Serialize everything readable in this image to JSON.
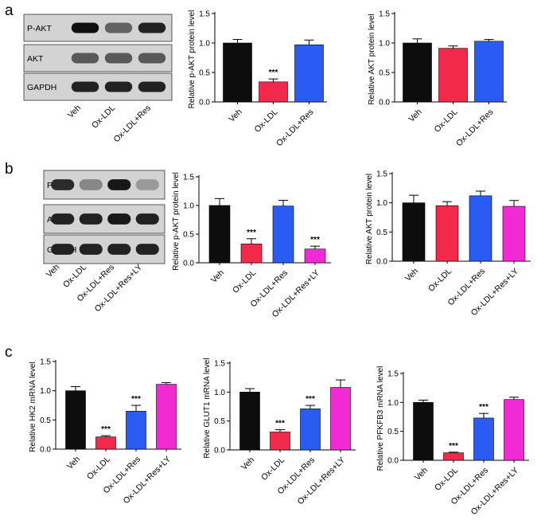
{
  "panels": {
    "a": "a",
    "b": "b",
    "c": "c"
  },
  "blots": {
    "a": {
      "rows": [
        "P-AKT",
        "AKT",
        "GAPDH"
      ],
      "lanes": [
        "Veh",
        "Ox-LDL",
        "Ox-LDL+Res"
      ],
      "band_intensity": [
        [
          1.0,
          0.55,
          0.9
        ],
        [
          0.6,
          0.6,
          0.6
        ],
        [
          0.9,
          0.9,
          0.9
        ]
      ]
    },
    "b": {
      "rows": [
        "P-AKT",
        "AKT",
        "GAPDH"
      ],
      "lanes": [
        "Veh",
        "Ox-LDL",
        "Ox-LDL+Res",
        "Ox-LDL+Res+LY"
      ],
      "band_intensity": [
        [
          0.85,
          0.35,
          0.95,
          0.25
        ],
        [
          0.9,
          0.9,
          0.95,
          0.9
        ],
        [
          0.9,
          0.9,
          0.9,
          0.9
        ]
      ]
    }
  },
  "colors": {
    "Veh": "#0d0d0d",
    "Ox-LDL": "#f2294a",
    "Ox-LDL+Res": "#2a5cf4",
    "Ox-LDL+Res+LY": "#f12ad3"
  },
  "chart_data": [
    {
      "type": "bar",
      "panel": "a",
      "title": "",
      "xlabel": "",
      "ylabel": "Relative p-AKT protein level",
      "ylim": [
        0,
        1.5
      ],
      "yticks": [
        "0.0",
        "0.5",
        "1.0",
        "1.5"
      ],
      "categories": [
        "Veh",
        "Ox-LDL",
        "Ox-LDL+Res"
      ],
      "values": [
        1.0,
        0.34,
        0.97
      ],
      "errors": [
        0.06,
        0.05,
        0.08
      ],
      "annotations": [
        "",
        "***",
        ""
      ]
    },
    {
      "type": "bar",
      "panel": "a",
      "title": "",
      "xlabel": "",
      "ylabel": "Relative AKT protein level",
      "ylim": [
        0,
        1.5
      ],
      "yticks": [
        "0.0",
        "0.5",
        "1.0",
        "1.5"
      ],
      "categories": [
        "Veh",
        "Ox-LDL",
        "Ox-LDL+Res"
      ],
      "values": [
        1.0,
        0.91,
        1.03
      ],
      "errors": [
        0.07,
        0.04,
        0.03
      ],
      "annotations": [
        "",
        "",
        ""
      ]
    },
    {
      "type": "bar",
      "panel": "b",
      "title": "",
      "xlabel": "",
      "ylabel": "Relative p-AKT protein level",
      "ylim": [
        0,
        1.5
      ],
      "yticks": [
        "0.0",
        "0.5",
        "1.0",
        "1.5"
      ],
      "categories": [
        "Veh",
        "Ox-LDL",
        "Ox-LDL+Res",
        "Ox-LDL+Res+LY"
      ],
      "values": [
        1.0,
        0.33,
        0.99,
        0.24
      ],
      "errors": [
        0.12,
        0.09,
        0.1,
        0.05
      ],
      "annotations": [
        "",
        "***",
        "",
        "***"
      ]
    },
    {
      "type": "bar",
      "panel": "b",
      "title": "",
      "xlabel": "",
      "ylabel": "Relative AKT protein level",
      "ylim": [
        0,
        1.5
      ],
      "yticks": [
        "0.0",
        "0.5",
        "1.0",
        "1.5"
      ],
      "categories": [
        "Veh",
        "Ox-LDL",
        "Ox-LDL+Res",
        "Ox-LDL+Res+LY"
      ],
      "values": [
        1.0,
        0.95,
        1.12,
        0.94
      ],
      "errors": [
        0.13,
        0.07,
        0.08,
        0.1
      ],
      "annotations": [
        "",
        "",
        "",
        ""
      ]
    },
    {
      "type": "bar",
      "panel": "c",
      "title": "",
      "xlabel": "",
      "ylabel": "Relative HK2 mRNA level",
      "ylim": [
        0,
        1.5
      ],
      "yticks": [
        "0.0",
        "0.5",
        "1.0",
        "1.5"
      ],
      "categories": [
        "Veh",
        "Ox-LDL",
        "Ox-LDL+Res",
        "Ox-LDL+Res+LY"
      ],
      "values": [
        1.0,
        0.21,
        0.65,
        1.11
      ],
      "errors": [
        0.07,
        0.02,
        0.1,
        0.03
      ],
      "annotations": [
        "",
        "***",
        "***",
        ""
      ]
    },
    {
      "type": "bar",
      "panel": "c",
      "title": "",
      "xlabel": "",
      "ylabel": "Relative GLUT1 mRNA level",
      "ylim": [
        0,
        1.5
      ],
      "yticks": [
        "0.0",
        "0.5",
        "1.0",
        "1.5"
      ],
      "categories": [
        "Veh",
        "Ox-LDL",
        "Ox-LDL+Res",
        "Ox-LDL+Res+LY"
      ],
      "values": [
        1.0,
        0.31,
        0.71,
        1.08
      ],
      "errors": [
        0.06,
        0.04,
        0.06,
        0.13
      ],
      "annotations": [
        "",
        "***",
        "***",
        ""
      ]
    },
    {
      "type": "bar",
      "panel": "c",
      "title": "",
      "xlabel": "",
      "ylabel": "Relative PFKFB3 mRNA level",
      "ylim": [
        0,
        1.5
      ],
      "yticks": [
        "0.0",
        "0.5",
        "1.0",
        "1.5"
      ],
      "categories": [
        "Veh",
        "Ox-LDL",
        "Ox-LDL+Res",
        "Ox-LDL+Res+LY"
      ],
      "values": [
        1.0,
        0.13,
        0.73,
        1.05
      ],
      "errors": [
        0.04,
        0.01,
        0.08,
        0.04
      ],
      "annotations": [
        "",
        "***",
        "***",
        ""
      ]
    }
  ]
}
